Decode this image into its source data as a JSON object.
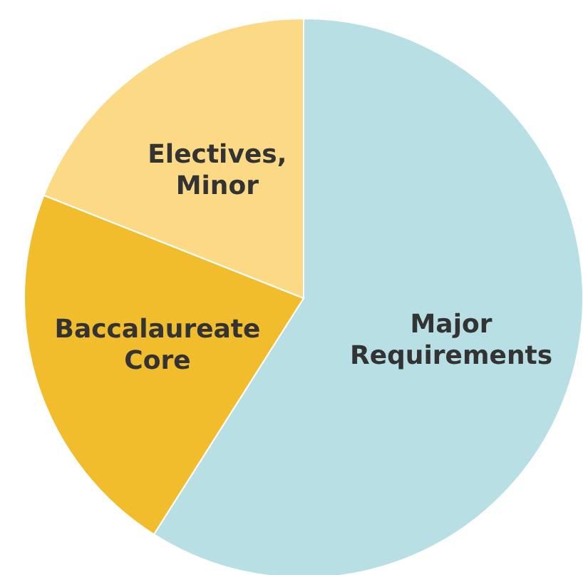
{
  "chart_data": {
    "type": "pie",
    "categories": [
      "Major Requirements",
      "Baccalaureate Core",
      "Electives, Minor"
    ],
    "values": [
      59,
      22,
      19
    ],
    "colors": [
      "#b8dfe3",
      "#f2bd2c",
      "#fcd985"
    ]
  }
}
